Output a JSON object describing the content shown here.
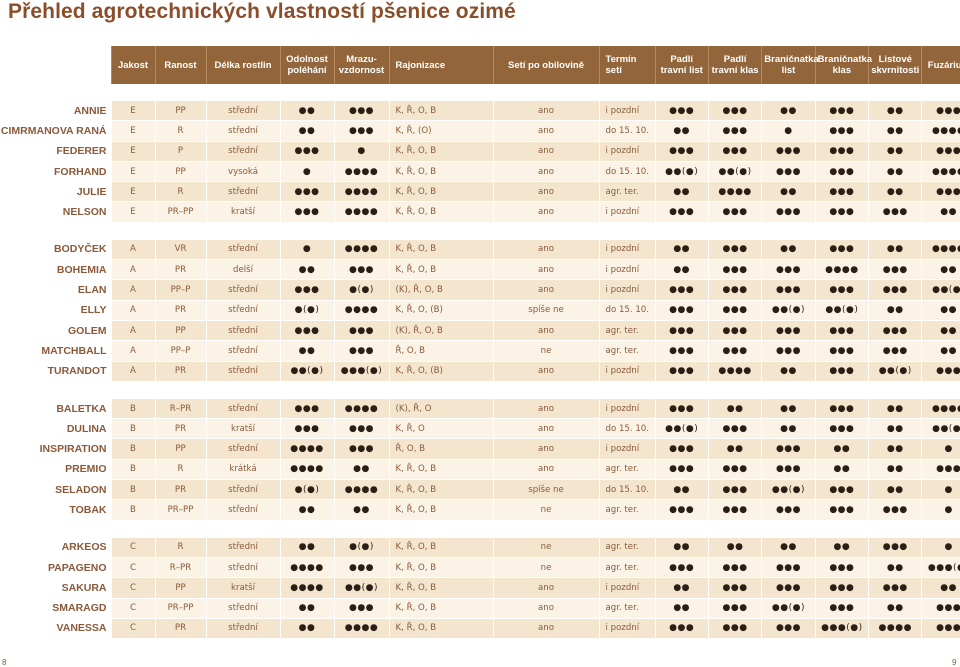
{
  "title": "Přehled agrotechnických vlastností pšenice ozimé",
  "headers": [
    "Jakost",
    "Ranost",
    "Délka rostlin",
    "Odolnost poléhání",
    "Mrazu-vzdornost",
    "Rajonizace",
    "Setí po obilovině",
    "Termín setí",
    "Padlí travní list",
    "Padlí travní klas",
    "Braničnatka list",
    "Braničnatka klas",
    "Listové skvrnitosti",
    "Fuzárium"
  ],
  "groups": [
    [
      [
        "ANNIE",
        "E",
        "PP",
        "střední",
        "●●",
        "●●●",
        "K, Ř, O, B",
        "ano",
        "i pozdní",
        "●●●",
        "●●●",
        "●●",
        "●●●",
        "●●",
        "●●●"
      ],
      [
        "CIMRMANOVA RANÁ",
        "E",
        "R",
        "střední",
        "●●",
        "●●●",
        "K, Ř, (O)",
        "ano",
        "do 15. 10.",
        "●●",
        "●●●",
        "●",
        "●●●",
        "●●",
        "●●●●"
      ],
      [
        "FEDERER",
        "E",
        "P",
        "střední",
        "●●●",
        "●",
        "K, Ř, O, B",
        "ano",
        "i pozdní",
        "●●●",
        "●●●",
        "●●●",
        "●●●",
        "●●",
        "●●●"
      ],
      [
        "FORHAND",
        "E",
        "PP",
        "vysoká",
        "●",
        "●●●●",
        "K, Ř, O, B",
        "ano",
        "do 15. 10.",
        "●●(●)",
        "●●(●)",
        "●●●",
        "●●●",
        "●●",
        "●●●●"
      ],
      [
        "JULIE",
        "E",
        "R",
        "střední",
        "●●●",
        "●●●●",
        "K, Ř, O, B",
        "ano",
        "agr. ter.",
        "●●",
        "●●●●",
        "●●",
        "●●●",
        "●●",
        "●●●"
      ],
      [
        "NELSON",
        "E",
        "PR–PP",
        "kratší",
        "●●●",
        "●●●●",
        "K, Ř, O, B",
        "ano",
        "i pozdní",
        "●●●",
        "●●●",
        "●●●",
        "●●●",
        "●●●",
        "●●"
      ]
    ],
    [
      [
        "BODYČEK",
        "A",
        "VR",
        "střední",
        "●",
        "●●●●",
        "K, Ř, O, B",
        "ano",
        "i pozdní",
        "●●",
        "●●●",
        "●●",
        "●●●",
        "●●",
        "●●●●"
      ],
      [
        "BOHEMIA",
        "A",
        "PR",
        "delší",
        "●●",
        "●●●",
        "K, Ř, O, B",
        "ano",
        "i pozdní",
        "●●",
        "●●●",
        "●●●",
        "●●●●",
        "●●●",
        "●●"
      ],
      [
        "ELAN",
        "A",
        "PP–P",
        "střední",
        "●●●",
        "●(●)",
        "(K), Ř, O, B",
        "ano",
        "i pozdní",
        "●●●",
        "●●●",
        "●●●",
        "●●●",
        "●●●",
        "●●(●)"
      ],
      [
        "ELLY",
        "A",
        "PR",
        "střední",
        "●(●)",
        "●●●●",
        "K, Ř, O, (B)",
        "spíše ne",
        "do 15. 10.",
        "●●●",
        "●●●",
        "●●(●)",
        "●●(●)",
        "●●",
        "●●"
      ],
      [
        "GOLEM",
        "A",
        "PP",
        "střední",
        "●●●",
        "●●●",
        "(K), Ř, O, B",
        "ano",
        "agr. ter.",
        "●●●",
        "●●●",
        "●●●",
        "●●●",
        "●●●",
        "●●"
      ],
      [
        "MATCHBALL",
        "A",
        "PP–P",
        "střední",
        "●●",
        "●●●",
        "Ř, O, B",
        "ne",
        "agr. ter.",
        "●●●",
        "●●●",
        "●●●",
        "●●●",
        "●●●",
        "●●"
      ],
      [
        "TURANDOT",
        "A",
        "PR",
        "střední",
        "●●(●)",
        "●●●(●)",
        "K, Ř, O, (B)",
        "ano",
        "i pozdní",
        "●●●",
        "●●●●",
        "●●",
        "●●●",
        "●●(●)",
        "●●●"
      ]
    ],
    [
      [
        "BALETKA",
        "B",
        "R–PR",
        "střední",
        "●●●",
        "●●●●",
        "(K), Ř, O",
        "ano",
        "i pozdní",
        "●●●",
        "●●",
        "●●",
        "●●●",
        "●●",
        "●●●●"
      ],
      [
        "DULINA",
        "B",
        "PR",
        "kratší",
        "●●●",
        "●●●",
        "K, Ř, O",
        "ano",
        "do 15. 10.",
        "●●(●)",
        "●●●",
        "●●",
        "●●●",
        "●●",
        "●●(●)"
      ],
      [
        "INSPIRATION",
        "B",
        "PP",
        "střední",
        "●●●●",
        "●●●",
        "Ř, O, B",
        "ano",
        "i pozdní",
        "●●●",
        "●●",
        "●●●",
        "●●",
        "●●",
        "●"
      ],
      [
        "PREMIO",
        "B",
        "R",
        "krátká",
        "●●●●",
        "●●",
        "K, Ř, O, B",
        "ano",
        "agr. ter.",
        "●●●",
        "●●●",
        "●●●",
        "●●",
        "●●",
        "●●●"
      ],
      [
        "SELADON",
        "B",
        "PR",
        "střední",
        "●(●)",
        "●●●●",
        "K, Ř, O, B",
        "spíše ne",
        "do 15. 10.",
        "●●",
        "●●●",
        "●●(●)",
        "●●●",
        "●●",
        "●"
      ],
      [
        "TOBAK",
        "B",
        "PR–PP",
        "střední",
        "●●",
        "●●",
        "K, Ř, O, B",
        "ne",
        "agr. ter.",
        "●●●",
        "●●●",
        "●●●",
        "●●●",
        "●●●",
        "●"
      ]
    ],
    [
      [
        "ARKEOS",
        "C",
        "R",
        "střední",
        "●●",
        "●(●)",
        "K, Ř, O, B",
        "ne",
        "agr. ter.",
        "●●",
        "●●",
        "●●",
        "●●",
        "●●●",
        "●"
      ],
      [
        "PAPAGENO",
        "C",
        "R–PR",
        "střední",
        "●●●●",
        "●●●",
        "K, Ř, O, B",
        "ne",
        "agr. ter.",
        "●●●",
        "●●●",
        "●●●",
        "●●●",
        "●●",
        "●●●(●)"
      ],
      [
        "SAKURA",
        "C",
        "PP",
        "kratší",
        "●●●●",
        "●●(●)",
        "K, Ř, O, B",
        "ano",
        "i pozdní",
        "●●",
        "●●●",
        "●●●",
        "●●●",
        "●●●",
        "●●"
      ],
      [
        "SMARAGD",
        "C",
        "PR–PP",
        "střední",
        "●●",
        "●●●",
        "K, Ř, O, B",
        "ano",
        "agr. ter.",
        "●●",
        "●●●",
        "●●(●)",
        "●●●",
        "●●",
        "●●●"
      ],
      [
        "VANESSA",
        "C",
        "PR",
        "střední",
        "●●",
        "●●●●",
        "K, Ř, O, B",
        "ano",
        "i pozdní",
        "●●●",
        "●●●",
        "●●●",
        "●●●(●)",
        "●●●●",
        "●●●"
      ]
    ]
  ],
  "page_left": "8",
  "page_right": "9"
}
